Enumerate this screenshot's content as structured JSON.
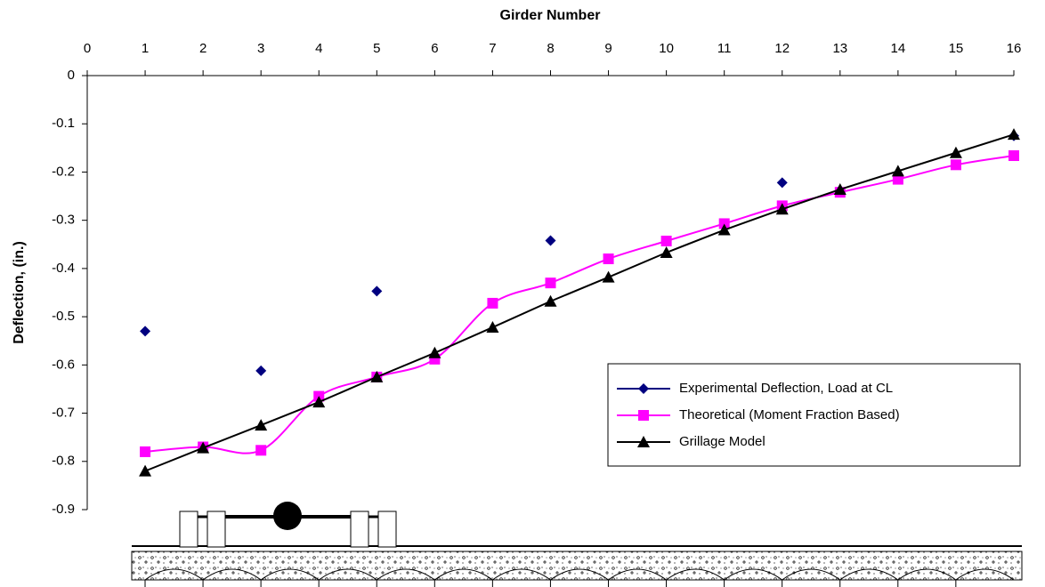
{
  "chart_data": {
    "type": "line",
    "x_title": "Girder Number",
    "y_title": "Deflection, (in.)",
    "x": [
      1,
      2,
      3,
      4,
      5,
      6,
      7,
      8,
      9,
      10,
      11,
      12,
      13,
      14,
      15,
      16
    ],
    "series": [
      {
        "name": "Experimental Deflection, Load at CL",
        "color": "#000080",
        "marker": "diamond",
        "line": false,
        "values": [
          -0.53,
          null,
          -0.612,
          null,
          -0.447,
          null,
          null,
          -0.342,
          null,
          null,
          null,
          -0.222,
          null,
          null,
          null,
          -0.125
        ]
      },
      {
        "name": "Theoretical (Moment Fraction Based)",
        "color": "#ff00ff",
        "marker": "square",
        "line": true,
        "smooth": true,
        "values": [
          -0.78,
          -0.77,
          -0.777,
          -0.665,
          -0.625,
          -0.588,
          -0.472,
          -0.43,
          -0.38,
          -0.343,
          -0.307,
          -0.27,
          -0.242,
          -0.215,
          -0.185,
          -0.166
        ]
      },
      {
        "name": "Grillage Model",
        "color": "#000000",
        "marker": "triangle",
        "line": true,
        "smooth": false,
        "values": [
          -0.82,
          -0.772,
          -0.725,
          -0.677,
          -0.625,
          -0.575,
          -0.522,
          -0.468,
          -0.418,
          -0.367,
          -0.32,
          -0.277,
          -0.236,
          -0.198,
          -0.16,
          -0.122
        ]
      }
    ],
    "xlim": [
      0,
      16
    ],
    "xticks": [
      0,
      1,
      2,
      3,
      4,
      5,
      6,
      7,
      8,
      9,
      10,
      11,
      12,
      13,
      14,
      15,
      16
    ],
    "ylim": [
      -0.9,
      0
    ],
    "yticks": [
      0,
      -0.1,
      -0.2,
      -0.3,
      -0.4,
      -0.5,
      -0.6,
      -0.7,
      -0.8,
      -0.9
    ],
    "x_axis_position": "top",
    "grid": false,
    "legend": "right"
  }
}
